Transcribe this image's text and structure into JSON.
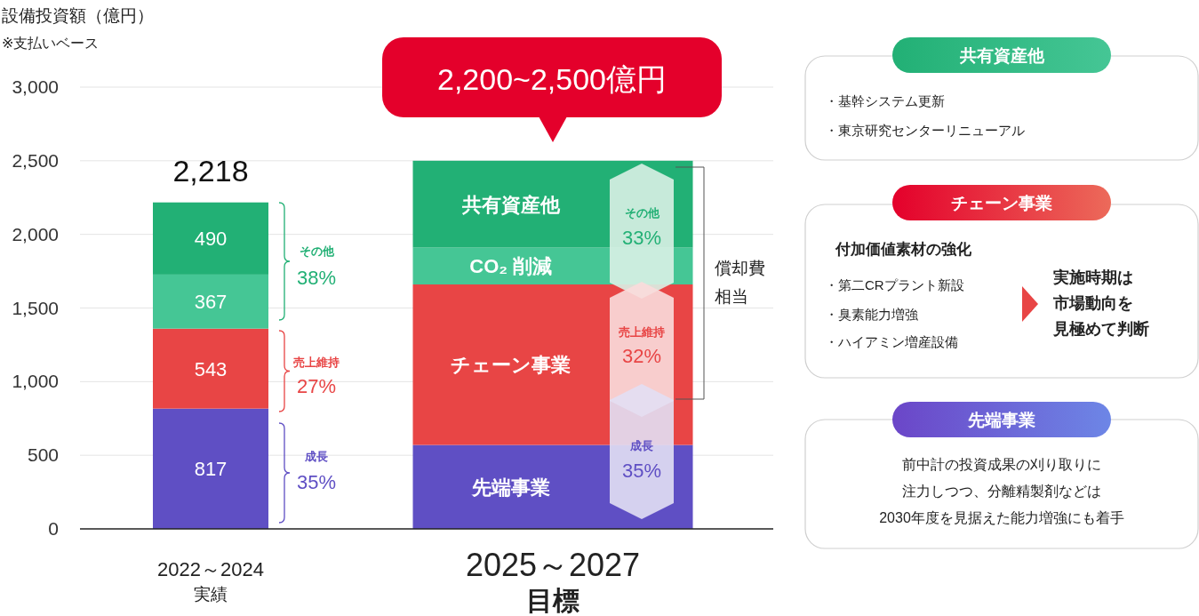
{
  "chart_data": {
    "type": "bar",
    "stacked": true,
    "title": "設備投資額（億円）",
    "subtitle": "※支払いベース",
    "categories": [
      "2022～2024\n実績",
      "2025～2027\n目標"
    ],
    "series": [
      {
        "name": "先端事業",
        "color": "#5f4fc4",
        "values": [
          817,
          570
        ],
        "value_labels": [
          "817",
          null
        ]
      },
      {
        "name": "チェーン事業",
        "color": "#e84545",
        "values": [
          543,
          1090
        ],
        "value_labels": [
          "543",
          null
        ]
      },
      {
        "name": "CO₂ 削減",
        "color": "#45c695",
        "values": [
          367,
          250
        ],
        "value_labels": [
          "367",
          null
        ]
      },
      {
        "name": "共有資産他",
        "color": "#22b075",
        "values": [
          490,
          590
        ],
        "value_labels": [
          "490",
          null
        ]
      }
    ],
    "totals": [
      "2,218",
      null
    ],
    "ylim": [
      0,
      3000
    ],
    "yticks": [
      0,
      500,
      {
        "value": 1000,
        "label": "1,000"
      },
      {
        "value": 1500,
        "label": "1,500"
      },
      {
        "value": 2000,
        "label": "2,000"
      },
      {
        "value": 2500,
        "label": "2,500"
      },
      {
        "value": 3000,
        "label": "3,000"
      }
    ],
    "grid": "y",
    "annotations": [
      "その他",
      "38%",
      "売上維持",
      "27%",
      "成長",
      "35%",
      "その他",
      "33%",
      "売上維持",
      "32%",
      "成長",
      "35%",
      "償却費相当",
      "2,200~2,500億円",
      "共有資産他",
      "・基幹システム更新",
      "・東京研究センターリニューアル",
      "チェーン事業",
      "付加価値素材の強化",
      "・第二CRプラント新設",
      "・臭素能力増強",
      "・ハイアミン増産設備",
      "実施時期は市場動向を見極めて判断",
      "先端事業",
      "前中計の投資成果の刈り取りに注力しつつ、分離精製剤などは2030年度を見据えた能力増強にも着手"
    ]
  }
}
